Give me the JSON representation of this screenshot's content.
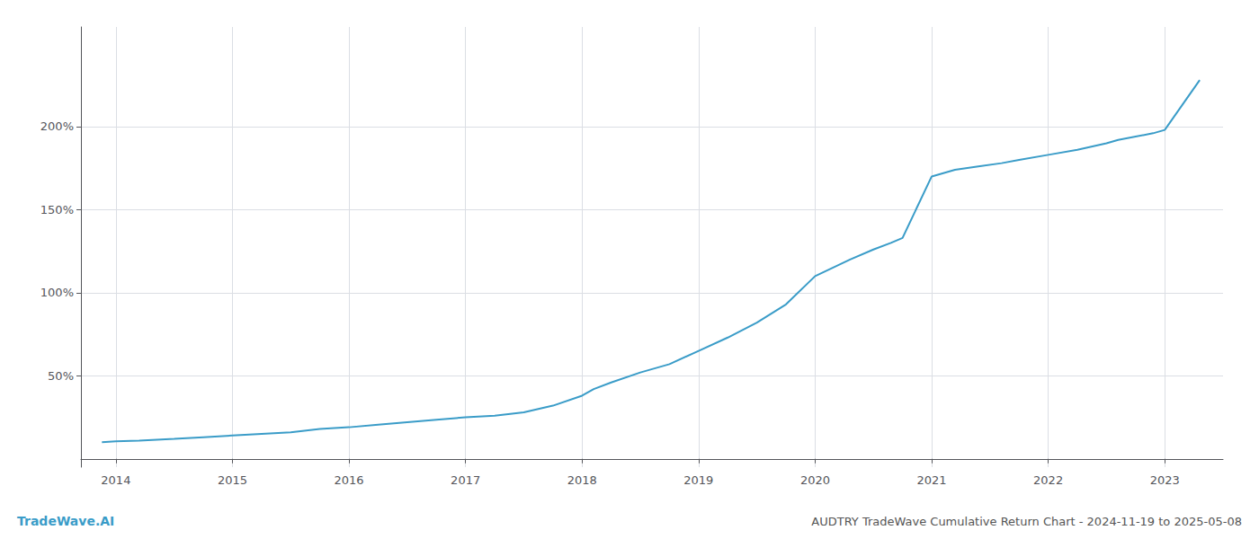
{
  "chart_data": {
    "type": "line",
    "title": "AUDTRY TradeWave Cumulative Return Chart - 2024-11-19 to 2025-05-08",
    "annotations": [
      "TradeWave.AI"
    ],
    "color": "#3a9cc8",
    "x": [
      2013.88,
      2014.0,
      2014.2,
      2014.5,
      2014.75,
      2015.0,
      2015.25,
      2015.5,
      2015.75,
      2016.0,
      2016.25,
      2016.5,
      2016.75,
      2017.0,
      2017.25,
      2017.5,
      2017.75,
      2018.0,
      2018.1,
      2018.25,
      2018.5,
      2018.75,
      2019.0,
      2019.25,
      2019.5,
      2019.75,
      2020.0,
      2020.15,
      2020.3,
      2020.5,
      2020.65,
      2020.75,
      2021.0,
      2021.1,
      2021.2,
      2021.4,
      2021.6,
      2021.75,
      2022.0,
      2022.25,
      2022.5,
      2022.6,
      2022.75,
      2022.9,
      2023.0,
      2023.15,
      2023.3
    ],
    "values": [
      10,
      10.5,
      11,
      12,
      13,
      14,
      15,
      16,
      18,
      19,
      20.5,
      22,
      23.5,
      25,
      26,
      28,
      32,
      38,
      42,
      46,
      52,
      57,
      65,
      73,
      82,
      93,
      110,
      115,
      120,
      126,
      130,
      133,
      170,
      172,
      174,
      176,
      178,
      180,
      183,
      186,
      190,
      192,
      194,
      196,
      198,
      213,
      228
    ],
    "xlim": [
      2013.7,
      2023.5
    ],
    "ylim": [
      -5,
      260
    ],
    "xticks": [
      2014,
      2015,
      2016,
      2017,
      2018,
      2019,
      2020,
      2021,
      2022,
      2023
    ],
    "yticks": [
      {
        "value": 50,
        "label": "50%"
      },
      {
        "value": 100,
        "label": "100%"
      },
      {
        "value": 150,
        "label": "150%"
      },
      {
        "value": 200,
        "label": "200%"
      }
    ],
    "grid": true
  }
}
